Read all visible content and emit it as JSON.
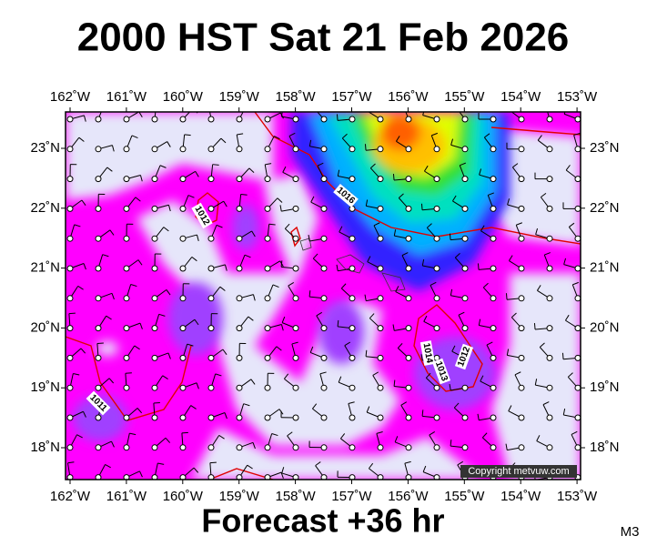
{
  "header": {
    "title": "2000 HST Sat 21 Feb 2026"
  },
  "map": {
    "lon_labels": [
      "162˚W",
      "161˚W",
      "160˚W",
      "159˚W",
      "158˚W",
      "157˚W",
      "156˚W",
      "155˚W",
      "154˚W",
      "153˚W"
    ],
    "lat_labels": [
      "23˚N",
      "22˚N",
      "21˚N",
      "20˚N",
      "19˚N",
      "18˚N"
    ],
    "isobar_labels": [
      "1012",
      "1016",
      "1014",
      "1013",
      "1012",
      "1011"
    ],
    "copyright": "Copyright metvuw.com"
  },
  "footer": {
    "forecast": "Forecast +36 hr",
    "code": "M3"
  }
}
